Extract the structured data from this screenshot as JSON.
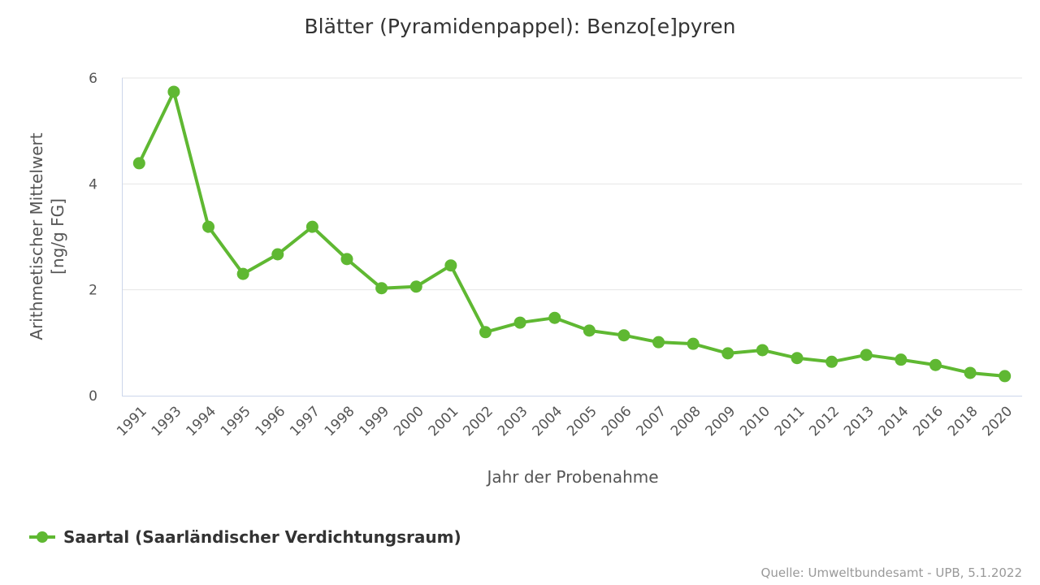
{
  "chart_data": {
    "type": "line",
    "title": "Blätter (Pyramidenpappel): Benzo[e]pyren",
    "xlabel": "Jahr der Probenahme",
    "ylabel": [
      "Arithmetischer Mittelwert",
      "[ng/g FG]"
    ],
    "ylim": [
      0,
      6
    ],
    "yticks": [
      0,
      2,
      4,
      6
    ],
    "grid": true,
    "legend_position": "bottom-left",
    "categories": [
      "1991",
      "1993",
      "1994",
      "1995",
      "1996",
      "1997",
      "1998",
      "1999",
      "2000",
      "2001",
      "2002",
      "2003",
      "2004",
      "2005",
      "2006",
      "2007",
      "2008",
      "2009",
      "2010",
      "2011",
      "2012",
      "2013",
      "2014",
      "2016",
      "2018",
      "2020"
    ],
    "series": [
      {
        "name": "Saartal (Saarländischer Verdichtungsraum)",
        "color": "#5fb832",
        "values": [
          4.39,
          5.74,
          3.19,
          2.3,
          2.67,
          3.19,
          2.58,
          2.03,
          2.06,
          2.46,
          1.2,
          1.38,
          1.47,
          1.23,
          1.14,
          1.01,
          0.98,
          0.8,
          0.86,
          0.71,
          0.64,
          0.77,
          0.68,
          0.58,
          0.43,
          0.37
        ]
      }
    ],
    "credit": "Quelle: Umweltbundesamt - UPB, 5.1.2022"
  }
}
